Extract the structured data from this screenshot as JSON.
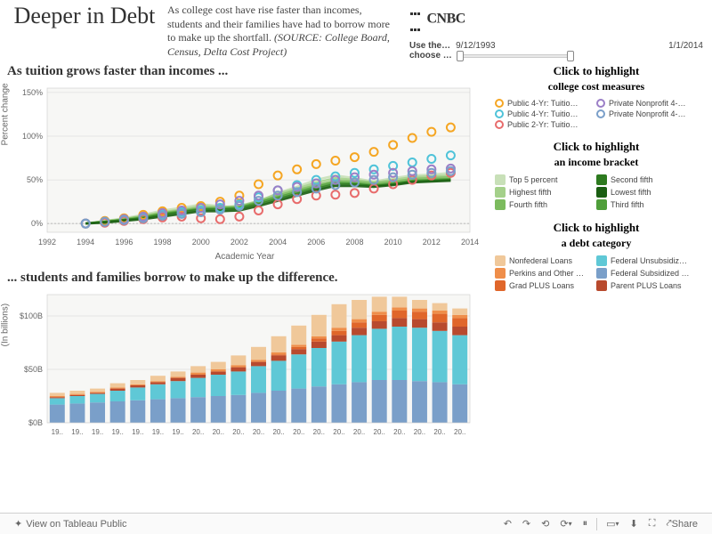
{
  "header": {
    "title": "Deeper in Debt",
    "subtitle_main": "As college cost have rise faster than incomes, students and their families have had to borrow more to make up the shortfall.",
    "subtitle_source": "(SOURCE: College Board, Census, Delta Cost Project)",
    "logo_text": "CNBC",
    "slider_label1": "Use the…",
    "slider_label2": "choose …",
    "slider_start": "9/12/1993",
    "slider_end": "1/1/2014"
  },
  "chart1": {
    "title": "As  tuition  grows  faster  than  incomes ...",
    "type": "scatter-line",
    "xlabel": "Academic Year",
    "ylabel": "Percent change",
    "xlim": [
      1992,
      2014
    ],
    "ylim": [
      -10,
      155
    ],
    "yticks": [
      0,
      50,
      100,
      150
    ],
    "ytick_labels": [
      "0%",
      "50%",
      "100%",
      "150%"
    ],
    "xticks": [
      1992,
      1994,
      1996,
      1998,
      2000,
      2002,
      2004,
      2006,
      2008,
      2010,
      2012,
      2014
    ],
    "background": "#f7f7f5",
    "grid_color": "#cccccc",
    "scatter_series": [
      {
        "color": "#f5a623",
        "points": [
          [
            1994,
            0
          ],
          [
            1995,
            3
          ],
          [
            1996,
            6
          ],
          [
            1997,
            10
          ],
          [
            1998,
            14
          ],
          [
            1999,
            18
          ],
          [
            2000,
            20
          ],
          [
            2001,
            25
          ],
          [
            2002,
            32
          ],
          [
            2003,
            45
          ],
          [
            2004,
            55
          ],
          [
            2005,
            62
          ],
          [
            2006,
            68
          ],
          [
            2007,
            72
          ],
          [
            2008,
            76
          ],
          [
            2009,
            82
          ],
          [
            2010,
            90
          ],
          [
            2011,
            98
          ],
          [
            2012,
            105
          ],
          [
            2013,
            110
          ]
        ]
      },
      {
        "color": "#4fc3d9",
        "points": [
          [
            1994,
            0
          ],
          [
            1995,
            2
          ],
          [
            1996,
            4
          ],
          [
            1997,
            7
          ],
          [
            1998,
            10
          ],
          [
            1999,
            13
          ],
          [
            2000,
            15
          ],
          [
            2001,
            18
          ],
          [
            2002,
            22
          ],
          [
            2003,
            30
          ],
          [
            2004,
            38
          ],
          [
            2005,
            44
          ],
          [
            2006,
            50
          ],
          [
            2007,
            54
          ],
          [
            2008,
            58
          ],
          [
            2009,
            62
          ],
          [
            2010,
            66
          ],
          [
            2011,
            70
          ],
          [
            2012,
            74
          ],
          [
            2013,
            78
          ]
        ]
      },
      {
        "color": "#e86c6c",
        "points": [
          [
            1994,
            0
          ],
          [
            1995,
            1
          ],
          [
            1996,
            3
          ],
          [
            1997,
            5
          ],
          [
            1998,
            7
          ],
          [
            1999,
            8
          ],
          [
            2000,
            6
          ],
          [
            2001,
            5
          ],
          [
            2002,
            8
          ],
          [
            2003,
            15
          ],
          [
            2004,
            22
          ],
          [
            2005,
            28
          ],
          [
            2006,
            32
          ],
          [
            2007,
            33
          ],
          [
            2008,
            35
          ],
          [
            2009,
            40
          ],
          [
            2010,
            45
          ],
          [
            2011,
            50
          ],
          [
            2012,
            55
          ],
          [
            2013,
            58
          ]
        ]
      },
      {
        "color": "#9b7fc7",
        "points": [
          [
            1994,
            0
          ],
          [
            1995,
            2
          ],
          [
            1996,
            5
          ],
          [
            1997,
            8
          ],
          [
            1998,
            12
          ],
          [
            1999,
            15
          ],
          [
            2000,
            18
          ],
          [
            2001,
            22
          ],
          [
            2002,
            26
          ],
          [
            2003,
            32
          ],
          [
            2004,
            38
          ],
          [
            2005,
            42
          ],
          [
            2006,
            46
          ],
          [
            2007,
            50
          ],
          [
            2008,
            53
          ],
          [
            2009,
            56
          ],
          [
            2010,
            58
          ],
          [
            2011,
            60
          ],
          [
            2012,
            62
          ],
          [
            2013,
            63
          ]
        ]
      },
      {
        "color": "#7a9fc9",
        "points": [
          [
            1994,
            0
          ],
          [
            1995,
            2
          ],
          [
            1996,
            4
          ],
          [
            1997,
            6
          ],
          [
            1998,
            9
          ],
          [
            1999,
            11
          ],
          [
            2000,
            13
          ],
          [
            2001,
            16
          ],
          [
            2002,
            20
          ],
          [
            2003,
            26
          ],
          [
            2004,
            32
          ],
          [
            2005,
            36
          ],
          [
            2006,
            40
          ],
          [
            2007,
            44
          ],
          [
            2008,
            47
          ],
          [
            2009,
            50
          ],
          [
            2010,
            53
          ],
          [
            2011,
            56
          ],
          [
            2012,
            58
          ],
          [
            2013,
            60
          ]
        ]
      }
    ],
    "line_series": [
      {
        "color": "#c8e0b8",
        "points": [
          [
            1994,
            0
          ],
          [
            1995,
            3
          ],
          [
            1996,
            6
          ],
          [
            1997,
            10
          ],
          [
            1998,
            15
          ],
          [
            1999,
            18
          ],
          [
            2000,
            22
          ],
          [
            2001,
            20
          ],
          [
            2002,
            18
          ],
          [
            2003,
            25
          ],
          [
            2004,
            35
          ],
          [
            2005,
            42
          ],
          [
            2006,
            50
          ],
          [
            2007,
            55
          ],
          [
            2008,
            52
          ],
          [
            2009,
            48
          ],
          [
            2010,
            52
          ],
          [
            2011,
            55
          ],
          [
            2012,
            56
          ],
          [
            2013,
            58
          ]
        ]
      },
      {
        "color": "#a4d08a",
        "points": [
          [
            1994,
            0
          ],
          [
            1995,
            3
          ],
          [
            1996,
            5
          ],
          [
            1997,
            9
          ],
          [
            1998,
            13
          ],
          [
            1999,
            16
          ],
          [
            2000,
            20
          ],
          [
            2001,
            19
          ],
          [
            2002,
            20
          ],
          [
            2003,
            26
          ],
          [
            2004,
            34
          ],
          [
            2005,
            40
          ],
          [
            2006,
            47
          ],
          [
            2007,
            52
          ],
          [
            2008,
            50
          ],
          [
            2009,
            47
          ],
          [
            2010,
            50
          ],
          [
            2011,
            53
          ],
          [
            2012,
            54
          ],
          [
            2013,
            55
          ]
        ]
      },
      {
        "color": "#7cbb5e",
        "points": [
          [
            1994,
            0
          ],
          [
            1995,
            2
          ],
          [
            1996,
            5
          ],
          [
            1997,
            8
          ],
          [
            1998,
            12
          ],
          [
            1999,
            15
          ],
          [
            2000,
            18
          ],
          [
            2001,
            18
          ],
          [
            2002,
            19
          ],
          [
            2003,
            25
          ],
          [
            2004,
            32
          ],
          [
            2005,
            38
          ],
          [
            2006,
            44
          ],
          [
            2007,
            49
          ],
          [
            2008,
            48
          ],
          [
            2009,
            46
          ],
          [
            2010,
            48
          ],
          [
            2011,
            51
          ],
          [
            2012,
            52
          ],
          [
            2013,
            53
          ]
        ]
      },
      {
        "color": "#4f9e3a",
        "points": [
          [
            1994,
            0
          ],
          [
            1995,
            2
          ],
          [
            1996,
            4
          ],
          [
            1997,
            7
          ],
          [
            1998,
            11
          ],
          [
            1999,
            14
          ],
          [
            2000,
            17
          ],
          [
            2001,
            17
          ],
          [
            2002,
            18
          ],
          [
            2003,
            24
          ],
          [
            2004,
            30
          ],
          [
            2005,
            36
          ],
          [
            2006,
            42
          ],
          [
            2007,
            47
          ],
          [
            2008,
            46
          ],
          [
            2009,
            44
          ],
          [
            2010,
            46
          ],
          [
            2011,
            49
          ],
          [
            2012,
            50
          ],
          [
            2013,
            51
          ]
        ]
      },
      {
        "color": "#2d7a1f",
        "points": [
          [
            1994,
            0
          ],
          [
            1995,
            2
          ],
          [
            1996,
            4
          ],
          [
            1997,
            6
          ],
          [
            1998,
            10
          ],
          [
            1999,
            13
          ],
          [
            2000,
            16
          ],
          [
            2001,
            16
          ],
          [
            2002,
            17
          ],
          [
            2003,
            22
          ],
          [
            2004,
            28
          ],
          [
            2005,
            34
          ],
          [
            2006,
            40
          ],
          [
            2007,
            45
          ],
          [
            2008,
            45
          ],
          [
            2009,
            43
          ],
          [
            2010,
            45
          ],
          [
            2011,
            48
          ],
          [
            2012,
            49
          ],
          [
            2013,
            50
          ]
        ]
      },
      {
        "color": "#1a5e12",
        "points": [
          [
            1994,
            0
          ],
          [
            1995,
            1
          ],
          [
            1996,
            3
          ],
          [
            1997,
            5
          ],
          [
            1998,
            8
          ],
          [
            1999,
            11
          ],
          [
            2000,
            14
          ],
          [
            2001,
            14
          ],
          [
            2002,
            15
          ],
          [
            2003,
            20
          ],
          [
            2004,
            26
          ],
          [
            2005,
            32
          ],
          [
            2006,
            38
          ],
          [
            2007,
            43
          ],
          [
            2008,
            43
          ],
          [
            2009,
            42
          ],
          [
            2010,
            44
          ],
          [
            2011,
            47
          ],
          [
            2012,
            48
          ],
          [
            2013,
            49
          ]
        ]
      }
    ]
  },
  "chart2": {
    "title": "... students  and  families  borrow  to  make  up  the  difference.",
    "type": "stacked-bar",
    "ylabel": "(In billions)",
    "ylim": [
      0,
      120
    ],
    "yticks": [
      0,
      50,
      100
    ],
    "ytick_labels": [
      "$0B",
      "$50B",
      "$100B"
    ],
    "categories": [
      "19..",
      "19..",
      "19..",
      "19..",
      "19..",
      "19..",
      "19..",
      "20..",
      "20..",
      "20..",
      "20..",
      "20..",
      "20..",
      "20..",
      "20..",
      "20..",
      "20..",
      "20..",
      "20..",
      "20..",
      "20.."
    ],
    "background": "#f7f7f5",
    "stacks": [
      {
        "name": "Federal Subsidized",
        "color": "#7a9fc9"
      },
      {
        "name": "Federal Unsubsidiz",
        "color": "#5fc8d6"
      },
      {
        "name": "Parent PLUS",
        "color": "#b84a2e"
      },
      {
        "name": "Grad PLUS",
        "color": "#e0662a"
      },
      {
        "name": "Perkins",
        "color": "#ef8e4a"
      },
      {
        "name": "Nonfederal",
        "color": "#f0c89a"
      }
    ],
    "data": [
      [
        17,
        6,
        1,
        0,
        1,
        3
      ],
      [
        18,
        7,
        1,
        0,
        1,
        3
      ],
      [
        19,
        8,
        1,
        0,
        1,
        3
      ],
      [
        20,
        10,
        2,
        0,
        1,
        4
      ],
      [
        21,
        12,
        2,
        0,
        1,
        4
      ],
      [
        22,
        14,
        2,
        0,
        1,
        5
      ],
      [
        23,
        16,
        3,
        0,
        1,
        5
      ],
      [
        24,
        18,
        3,
        0,
        2,
        6
      ],
      [
        25,
        20,
        3,
        0,
        2,
        7
      ],
      [
        26,
        22,
        4,
        0,
        2,
        9
      ],
      [
        28,
        25,
        4,
        0,
        2,
        12
      ],
      [
        30,
        28,
        5,
        1,
        2,
        15
      ],
      [
        32,
        32,
        5,
        2,
        2,
        18
      ],
      [
        34,
        36,
        6,
        3,
        2,
        20
      ],
      [
        36,
        40,
        6,
        4,
        3,
        22
      ],
      [
        38,
        44,
        7,
        5,
        3,
        18
      ],
      [
        40,
        48,
        7,
        6,
        3,
        14
      ],
      [
        40,
        50,
        8,
        7,
        3,
        10
      ],
      [
        39,
        50,
        8,
        7,
        3,
        8
      ],
      [
        38,
        48,
        8,
        8,
        3,
        7
      ],
      [
        36,
        46,
        8,
        8,
        3,
        6
      ]
    ]
  },
  "legends": {
    "cost": {
      "title": "Click  to  highlight",
      "sub": "college cost measures",
      "items": [
        {
          "label": "Public 4-Yr: Tuitio…",
          "color": "#f5a623",
          "shape": "circle"
        },
        {
          "label": "Private Nonprofit 4-…",
          "color": "#9b7fc7",
          "shape": "circle"
        },
        {
          "label": "Public 4-Yr: Tuitio…",
          "color": "#4fc3d9",
          "shape": "circle"
        },
        {
          "label": "Private Nonprofit 4-…",
          "color": "#7a9fc9",
          "shape": "circle"
        },
        {
          "label": "Public 2-Yr: Tuitio…",
          "color": "#e86c6c",
          "shape": "circle"
        }
      ]
    },
    "income": {
      "title": "Click  to  highlight",
      "sub": "an income bracket",
      "items": [
        {
          "label": "Top 5 percent",
          "color": "#c8e0b8"
        },
        {
          "label": "Second fifth",
          "color": "#2d7a1f"
        },
        {
          "label": "Highest fifth",
          "color": "#a4d08a"
        },
        {
          "label": "Lowest fifth",
          "color": "#1a5e12"
        },
        {
          "label": "Fourth fifth",
          "color": "#7cbb5e"
        },
        {
          "label": "Third fifth",
          "color": "#4f9e3a"
        }
      ]
    },
    "debt": {
      "title": "Click  to  highlight",
      "sub": "a debt category",
      "items": [
        {
          "label": "Nonfederal Loans",
          "color": "#f0c89a"
        },
        {
          "label": "Federal Unsubsidiz…",
          "color": "#5fc8d6"
        },
        {
          "label": "Perkins and Other …",
          "color": "#ef8e4a"
        },
        {
          "label": "Federal Subsidized …",
          "color": "#7a9fc9"
        },
        {
          "label": "Grad PLUS Loans",
          "color": "#e0662a"
        },
        {
          "label": "Parent PLUS Loans",
          "color": "#b84a2e"
        }
      ]
    }
  },
  "footer": {
    "view_label": "View on Tableau Public",
    "share_label": "Share"
  }
}
